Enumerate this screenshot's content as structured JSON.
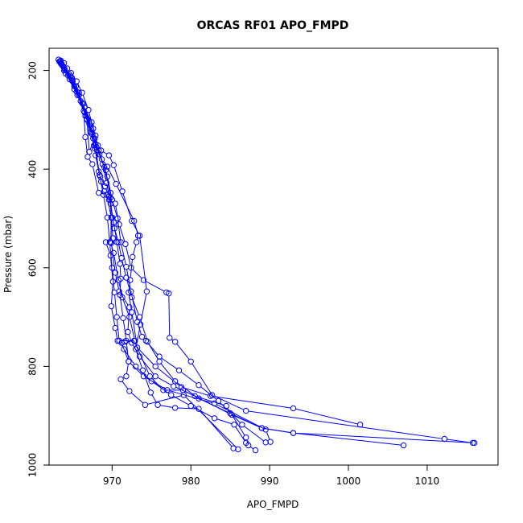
{
  "chart_data": {
    "type": "line",
    "title": "ORCAS RF01 APO_FMPD",
    "xlabel": "APO_FMPD",
    "ylabel": "Pressure (mbar)",
    "xlim": [
      962,
      1019
    ],
    "ylim": [
      1000,
      155
    ],
    "y_reversed": true,
    "grid": false,
    "x_ticks": [
      970,
      980,
      990,
      1000,
      1010
    ],
    "y_ticks": [
      200,
      400,
      600,
      800,
      1000
    ],
    "series_color": "#0000ff",
    "marker": "open-circle",
    "segments": [
      [
        [
          963.2,
          178
        ],
        [
          963.5,
          180
        ],
        [
          963.9,
          185
        ],
        [
          964.3,
          196
        ],
        [
          964.8,
          205
        ],
        [
          965.5,
          222
        ],
        [
          966.2,
          245
        ],
        [
          967.0,
          280
        ],
        [
          967.6,
          318
        ],
        [
          968.2,
          352
        ],
        [
          968.8,
          390
        ],
        [
          969.3,
          428
        ],
        [
          969.8,
          470
        ],
        [
          970.3,
          520
        ],
        [
          970.8,
          548
        ],
        [
          971.2,
          580
        ],
        [
          971.8,
          620
        ],
        [
          972.5,
          660
        ],
        [
          973.5,
          700
        ],
        [
          974.5,
          750
        ],
        [
          976.0,
          790
        ],
        [
          978.0,
          830
        ],
        [
          981.0,
          865
        ],
        [
          985.0,
          895
        ],
        [
          989.0,
          925
        ],
        [
          993.0,
          935
        ],
        [
          1007.0,
          960
        ]
      ],
      [
        [
          963.4,
          181
        ],
        [
          964.0,
          198
        ],
        [
          964.9,
          215
        ],
        [
          965.8,
          245
        ],
        [
          966.6,
          292
        ],
        [
          967.4,
          328
        ],
        [
          967.9,
          372
        ],
        [
          968.4,
          412
        ],
        [
          968.9,
          452
        ],
        [
          969.4,
          498
        ],
        [
          969.7,
          548
        ],
        [
          970.0,
          600
        ],
        [
          970.3,
          650
        ],
        [
          970.6,
          700
        ],
        [
          970.9,
          748
        ],
        [
          971.5,
          765
        ],
        [
          973.0,
          800
        ],
        [
          975.0,
          830
        ],
        [
          977.5,
          858
        ],
        [
          980.0,
          880
        ],
        [
          983.0,
          905
        ],
        [
          985.5,
          918
        ],
        [
          987.0,
          955
        ]
      ],
      [
        [
          963.6,
          188
        ],
        [
          964.7,
          212
        ],
        [
          965.8,
          250
        ],
        [
          966.8,
          300
        ],
        [
          967.5,
          330
        ],
        [
          968.3,
          362
        ],
        [
          969.4,
          415
        ],
        [
          970.0,
          462
        ],
        [
          970.7,
          500
        ],
        [
          971.1,
          548
        ],
        [
          971.8,
          598
        ],
        [
          972.4,
          648
        ],
        [
          973.2,
          710
        ],
        [
          973.8,
          740
        ],
        [
          974.3,
          748
        ],
        [
          976.0,
          780
        ],
        [
          978.5,
          808
        ],
        [
          981.0,
          838
        ],
        [
          983.5,
          870
        ],
        [
          986.5,
          918
        ],
        [
          989.5,
          954
        ]
      ],
      [
        [
          963.8,
          192
        ],
        [
          965.0,
          222
        ],
        [
          966.2,
          266
        ],
        [
          967.3,
          318
        ],
        [
          967.9,
          350
        ],
        [
          968.7,
          380
        ],
        [
          969.4,
          395
        ],
        [
          970.5,
          430
        ],
        [
          972.8,
          505
        ],
        [
          973.3,
          535
        ],
        [
          973.1,
          548
        ],
        [
          972.6,
          578
        ],
        [
          972.3,
          625
        ],
        [
          972.1,
          650
        ],
        [
          972.5,
          690
        ],
        [
          973.2,
          762
        ],
        [
          975.5,
          800
        ],
        [
          978.8,
          842
        ],
        [
          982.5,
          860
        ],
        [
          993.0,
          885
        ],
        [
          1001.5,
          918
        ]
      ],
      [
        [
          963.5,
          186
        ],
        [
          964.6,
          208
        ],
        [
          965.4,
          232
        ],
        [
          966.3,
          268
        ],
        [
          967.3,
          312
        ],
        [
          967.7,
          352
        ],
        [
          968.6,
          362
        ],
        [
          969.6,
          372
        ],
        [
          970.2,
          392
        ],
        [
          971.3,
          445
        ],
        [
          972.5,
          505
        ],
        [
          973.5,
          535
        ],
        [
          974.4,
          648
        ],
        [
          973.6,
          715
        ],
        [
          973.0,
          765
        ],
        [
          973.9,
          808
        ],
        [
          974.9,
          853
        ],
        [
          975.8,
          878
        ],
        [
          978.0,
          884
        ],
        [
          981.0,
          886
        ],
        [
          985.4,
          966
        ]
      ],
      [
        [
          963.3,
          182
        ],
        [
          963.9,
          200
        ],
        [
          964.6,
          218
        ],
        [
          965.6,
          250
        ],
        [
          966.5,
          285
        ],
        [
          967.3,
          325
        ],
        [
          967.8,
          358
        ],
        [
          968.5,
          415
        ],
        [
          969.1,
          435
        ],
        [
          969.6,
          455
        ],
        [
          970.2,
          508
        ],
        [
          970.6,
          548
        ],
        [
          971.0,
          592
        ],
        [
          971.1,
          622
        ],
        [
          971.0,
          655
        ],
        [
          971.4,
          702
        ],
        [
          971.8,
          748
        ],
        [
          972.1,
          790
        ],
        [
          971.8,
          820
        ],
        [
          971.1,
          826
        ],
        [
          972.2,
          850
        ],
        [
          974.2,
          878
        ],
        [
          979.1,
          858
        ],
        [
          986.0,
          968
        ]
      ],
      [
        [
          963.7,
          190
        ],
        [
          964.9,
          220
        ],
        [
          966.4,
          282
        ],
        [
          966.6,
          335
        ],
        [
          966.9,
          375
        ],
        [
          967.5,
          390
        ],
        [
          968.3,
          448
        ],
        [
          969.3,
          452
        ],
        [
          969.9,
          498
        ],
        [
          970.1,
          540
        ],
        [
          969.2,
          548
        ],
        [
          969.8,
          575
        ],
        [
          970.1,
          628
        ],
        [
          969.9,
          678
        ],
        [
          970.4,
          722
        ],
        [
          970.7,
          748
        ],
        [
          972.8,
          748
        ],
        [
          974.8,
          820
        ],
        [
          976.5,
          848
        ],
        [
          979.0,
          848
        ],
        [
          985.2,
          898
        ],
        [
          989.0,
          925
        ],
        [
          993.0,
          935
        ],
        [
          1016.0,
          955
        ]
      ],
      [
        [
          963.9,
          195
        ],
        [
          965.2,
          232
        ],
        [
          966.8,
          298
        ],
        [
          967.1,
          365
        ],
        [
          967.8,
          338
        ],
        [
          968.3,
          405
        ],
        [
          968.6,
          425
        ],
        [
          969.0,
          445
        ],
        [
          969.6,
          462
        ],
        [
          970.4,
          470
        ],
        [
          970.9,
          512
        ],
        [
          971.7,
          552
        ],
        [
          972.4,
          600
        ],
        [
          974.0,
          625
        ],
        [
          976.9,
          650
        ],
        [
          977.2,
          652
        ],
        [
          977.3,
          742
        ],
        [
          978.0,
          750
        ],
        [
          980.0,
          790
        ],
        [
          982.7,
          858
        ],
        [
          987.0,
          890
        ],
        [
          1012.2,
          947
        ],
        [
          1015.8,
          955
        ]
      ],
      [
        [
          963.5,
          184
        ],
        [
          964.1,
          206
        ],
        [
          965.2,
          238
        ],
        [
          966.0,
          262
        ],
        [
          967.1,
          308
        ],
        [
          967.6,
          338
        ],
        [
          968.4,
          370
        ],
        [
          969.2,
          402
        ],
        [
          969.8,
          458
        ],
        [
          970.0,
          498
        ],
        [
          969.8,
          548
        ],
        [
          970.2,
          570
        ],
        [
          970.8,
          625
        ],
        [
          971.3,
          660
        ],
        [
          972.2,
          700
        ],
        [
          972.9,
          748
        ],
        [
          971.6,
          750
        ],
        [
          971.2,
          752
        ],
        [
          972.1,
          790
        ],
        [
          974.0,
          820
        ],
        [
          977.0,
          848
        ],
        [
          983.0,
          875
        ],
        [
          989.5,
          928
        ],
        [
          990.1,
          953
        ]
      ],
      [
        [
          963.6,
          187
        ],
        [
          964.4,
          210
        ],
        [
          965.5,
          243
        ],
        [
          966.5,
          275
        ],
        [
          967.4,
          305
        ],
        [
          967.9,
          332
        ],
        [
          968.0,
          355
        ],
        [
          969.0,
          396
        ],
        [
          969.8,
          448
        ],
        [
          969.9,
          550
        ],
        [
          970.4,
          610
        ],
        [
          970.9,
          648
        ],
        [
          972.2,
          680
        ],
        [
          972.0,
          730
        ],
        [
          972.5,
          752
        ],
        [
          973.5,
          780
        ],
        [
          975.5,
          820
        ],
        [
          977.8,
          840
        ],
        [
          980.5,
          860
        ],
        [
          984.5,
          880
        ],
        [
          987.0,
          944
        ],
        [
          987.3,
          960
        ],
        [
          988.2,
          970
        ]
      ]
    ]
  }
}
